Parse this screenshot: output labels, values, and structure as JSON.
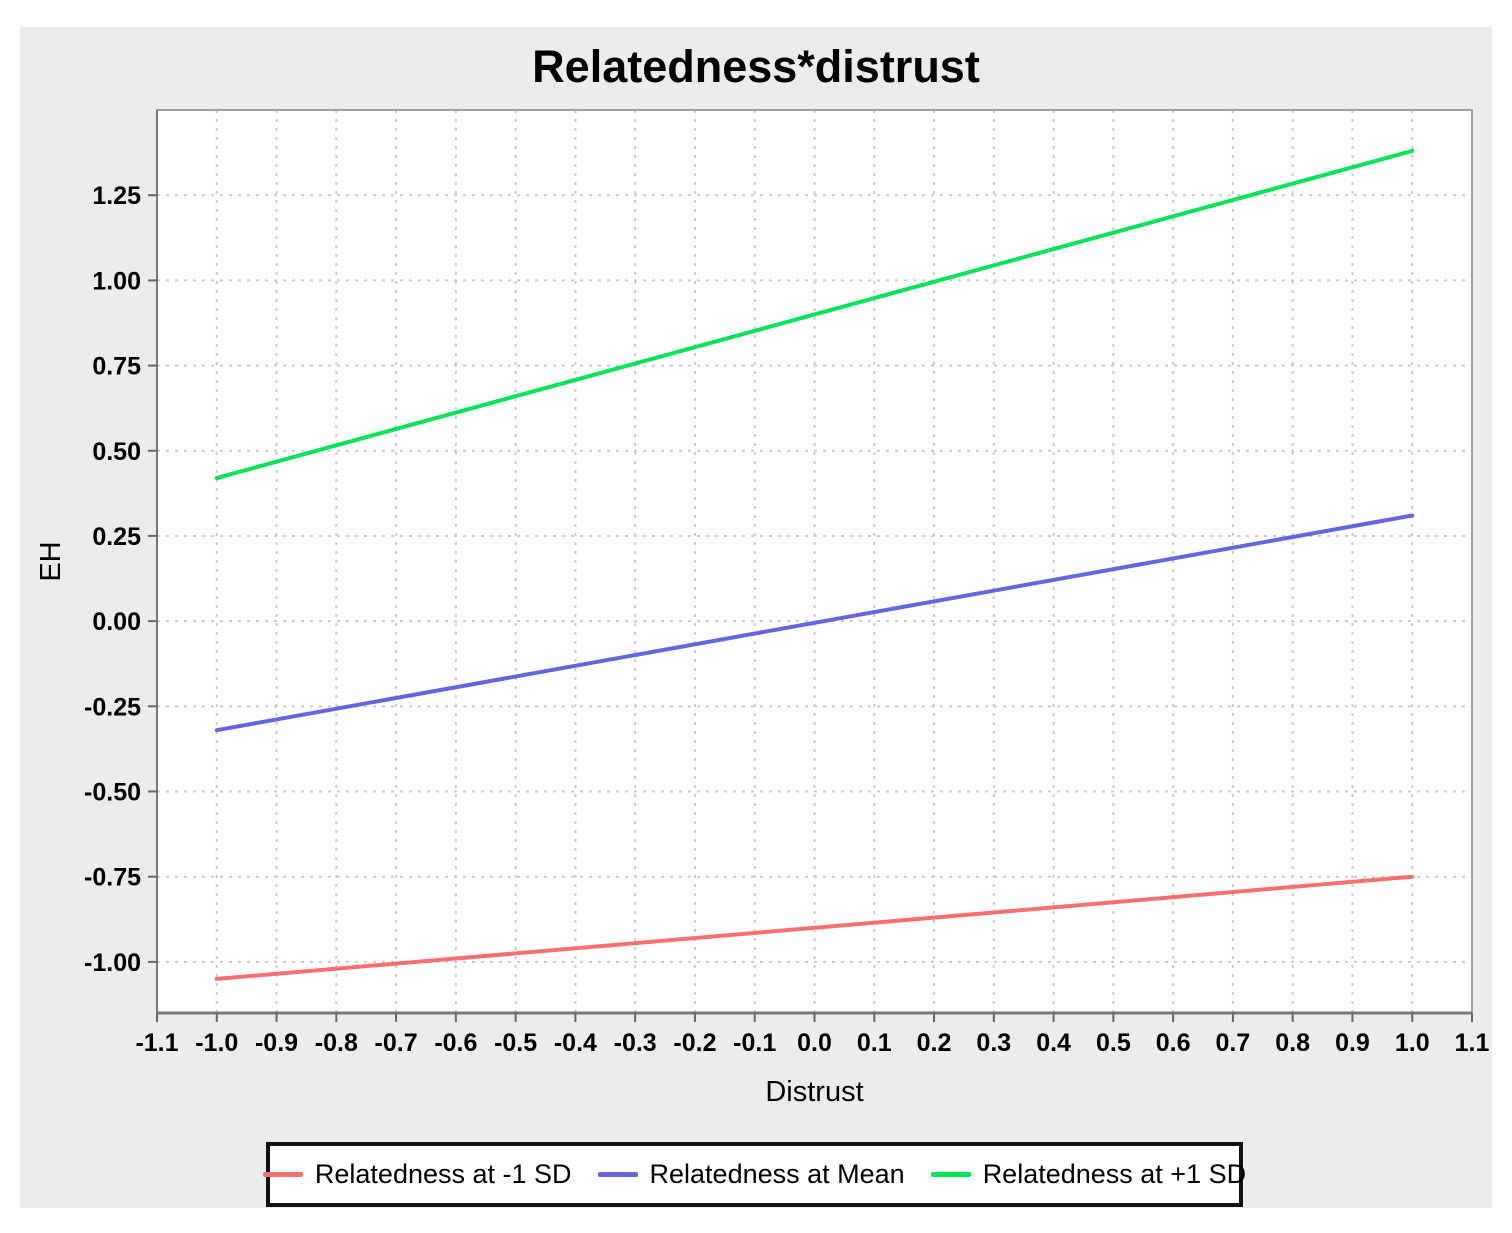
{
  "page": {
    "background": "#ffffff",
    "panel_background": "#ececec"
  },
  "chart_data": {
    "type": "line",
    "title": "Relatedness*distrust",
    "xlabel": "Distrust",
    "ylabel": "EH",
    "xlim": [
      -1.1,
      1.1
    ],
    "ylim": [
      -1.15,
      1.5
    ],
    "x_ticks": [
      -1.1,
      -1.0,
      -0.9,
      -0.8,
      -0.7,
      -0.6,
      -0.5,
      -0.4,
      -0.3,
      -0.2,
      -0.1,
      0.0,
      0.1,
      0.2,
      0.3,
      0.4,
      0.5,
      0.6,
      0.7,
      0.8,
      0.9,
      1.0,
      1.1
    ],
    "x_tick_labels": [
      "-1.1",
      "-1.0",
      "-0.9",
      "-0.8",
      "-0.7",
      "-0.6",
      "-0.5",
      "-0.4",
      "-0.3",
      "-0.2",
      "-0.1",
      "0.0",
      "0.1",
      "0.2",
      "0.3",
      "0.4",
      "0.5",
      "0.6",
      "0.7",
      "0.8",
      "0.9",
      "1.0",
      "1.1"
    ],
    "y_ticks": [
      -1.0,
      -0.75,
      -0.5,
      -0.25,
      0.0,
      0.25,
      0.5,
      0.75,
      1.0,
      1.25
    ],
    "y_tick_labels": [
      "-1.00",
      "-0.75",
      "-0.50",
      "-0.25",
      "0.00",
      "0.25",
      "0.50",
      "0.75",
      "1.00",
      "1.25"
    ],
    "grid": true,
    "legend_position": "bottom",
    "series": [
      {
        "name": "Relatedness at -1 SD",
        "color": "#f86f6f",
        "x": [
          -1.0,
          1.0
        ],
        "y": [
          -1.05,
          -0.75
        ]
      },
      {
        "name": "Relatedness at Mean",
        "color": "#6565e0",
        "x": [
          -1.0,
          1.0
        ],
        "y": [
          -0.32,
          0.31
        ]
      },
      {
        "name": "Relatedness at +1 SD",
        "color": "#00e455",
        "x": [
          -1.0,
          1.0
        ],
        "y": [
          0.42,
          1.38
        ]
      }
    ],
    "styles": {
      "grid_color": "#cbcbcb",
      "axis_color": "#787878",
      "border_color": "#a0a0a0",
      "tick_color": "#666666",
      "text_color": "#000000",
      "legend_border_color": "#111111",
      "legend_background": "#ffffff"
    }
  }
}
